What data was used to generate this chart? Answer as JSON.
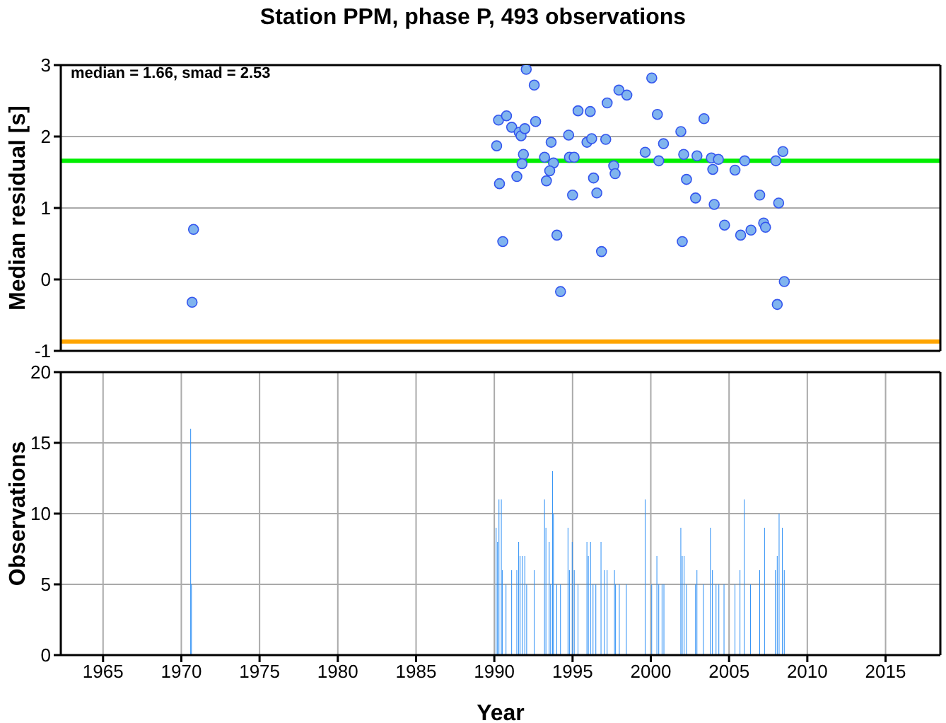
{
  "chart_data": [
    {
      "type": "scatter",
      "title": "Station PPM, phase P, 493 observations",
      "ylabel": "Median residual [s]",
      "annotations": [
        "median = 1.66, smad = 2.53"
      ],
      "x": [
        1970.78,
        1970.69,
        1992.04,
        1992.55,
        1990.27,
        1990.78,
        1991.11,
        1991.59,
        1991.71,
        1991.95,
        1992.64,
        1990.15,
        1991.86,
        1991.77,
        1991.44,
        1990.33,
        1990.54,
        1993.63,
        1993.21,
        1993.78,
        1993.54,
        1993.33,
        1994.0,
        1994.23,
        1994.75,
        1994.8,
        1995.1,
        1995.0,
        1995.35,
        1996.13,
        1995.92,
        1996.22,
        1997.12,
        1996.34,
        1996.55,
        1996.85,
        1997.21,
        1997.96,
        1998.47,
        1997.63,
        1997.72,
        2000.06,
        2000.42,
        1999.64,
        2000.81,
        2000.51,
        2001.92,
        2003.4,
        2002.1,
        2002.95,
        2003.87,
        2004.32,
        2002.28,
        2002.86,
        2004.05,
        2004.71,
        2002.01,
        2003.96,
        2006.0,
        2005.38,
        2008.44,
        2007.99,
        2006.96,
        2008.17,
        2005.74,
        2006.4,
        2007.21,
        2007.33,
        2008.53,
        2008.08
      ],
      "series": [
        {
          "color": "#80b4ee",
          "values": [
            0.7,
            -0.32,
            2.94,
            2.72,
            2.23,
            2.29,
            2.13,
            2.06,
            2.01,
            2.11,
            2.21,
            1.87,
            1.75,
            1.62,
            1.44,
            1.34,
            0.53,
            1.92,
            1.71,
            1.63,
            1.52,
            1.38,
            0.62,
            -0.17,
            2.02,
            1.71,
            1.71,
            1.18,
            2.36,
            2.35,
            1.92,
            1.97,
            1.96,
            1.42,
            1.21,
            0.39,
            2.47,
            2.65,
            2.58,
            1.59,
            1.48,
            2.82,
            2.31,
            1.78,
            1.9,
            1.66,
            2.07,
            2.25,
            1.75,
            1.73,
            1.7,
            1.68,
            1.4,
            1.14,
            1.05,
            0.76,
            0.53,
            1.54,
            1.66,
            1.53,
            1.79,
            1.66,
            1.18,
            1.07,
            0.62,
            0.69,
            0.79,
            0.73,
            -0.03,
            -0.35
          ]
        }
      ],
      "marker": "circle",
      "xlim": [
        1962.3,
        2018.5
      ],
      "xticks": [
        1965,
        1970,
        1975,
        1980,
        1985,
        1990,
        1995,
        2000,
        2005,
        2010,
        2015
      ],
      "ylim": [
        -1,
        3
      ],
      "yticks": [
        -1,
        0,
        1,
        2,
        3
      ],
      "grid": true,
      "tick_labels": "y",
      "ref_lines": [
        {
          "axis": "y",
          "value": 1.66,
          "color": "#00ee00"
        },
        {
          "axis": "y",
          "value": -0.87,
          "color": "#ffa500"
        }
      ]
    },
    {
      "type": "bar",
      "xlabel": "Year",
      "ylabel": "Observations",
      "x": [
        1970.6,
        1970.65,
        1990.12,
        1990.21,
        1990.3,
        1990.45,
        1990.51,
        1990.75,
        1991.11,
        1991.44,
        1991.56,
        1991.65,
        1991.8,
        1991.95,
        1992.07,
        1992.55,
        1993.21,
        1993.3,
        1993.51,
        1993.6,
        1993.72,
        1993.78,
        1993.99,
        1994.23,
        1994.71,
        1994.8,
        1994.98,
        1995.11,
        1995.35,
        1995.92,
        1996.01,
        1996.15,
        1996.31,
        1996.49,
        1996.82,
        1997.03,
        1997.21,
        1997.68,
        1997.75,
        1997.99,
        1998.44,
        1999.64,
        2000.06,
        2000.39,
        2000.51,
        2000.72,
        2000.84,
        2001.92,
        2002.01,
        2002.13,
        2002.28,
        2002.86,
        2002.95,
        2003.36,
        2003.81,
        2003.94,
        2004.17,
        2004.35,
        2004.68,
        2005.38,
        2005.7,
        2005.97,
        2006.37,
        2006.96,
        2007.27,
        2007.96,
        2008.08,
        2008.2,
        2008.41,
        2008.53
      ],
      "series": [
        {
          "color": "#2b8ef5",
          "values": [
            16,
            5,
            9,
            8,
            11,
            11,
            6,
            5,
            6,
            6,
            8,
            7,
            7,
            7,
            5,
            6,
            11,
            9,
            8,
            5,
            13,
            10,
            5,
            5,
            9,
            6,
            8,
            6,
            5,
            8,
            7,
            8,
            5,
            5,
            8,
            6,
            6,
            6,
            5,
            5,
            5,
            11,
            5,
            7,
            5,
            5,
            5,
            9,
            7,
            7,
            5,
            5,
            6,
            5,
            9,
            6,
            5,
            5,
            5,
            5,
            6,
            11,
            5,
            6,
            9,
            6,
            7,
            10,
            9,
            6
          ]
        }
      ],
      "xlim": [
        1962.3,
        2018.5
      ],
      "xticks": [
        1965,
        1970,
        1975,
        1980,
        1985,
        1990,
        1995,
        2000,
        2005,
        2010,
        2015
      ],
      "ylim": [
        0,
        20
      ],
      "yticks": [
        0,
        5,
        10,
        15,
        20
      ],
      "grid": true
    }
  ]
}
